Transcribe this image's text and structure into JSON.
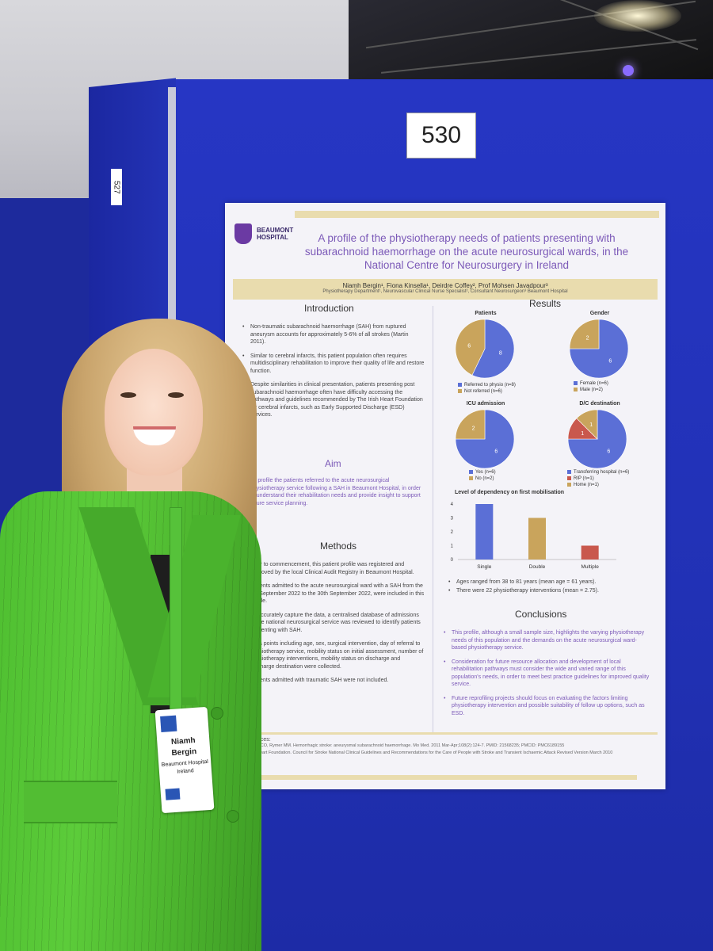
{
  "booth": {
    "number": "530",
    "side_number": "527"
  },
  "poster": {
    "logo": {
      "line1": "BEAUMONT",
      "line2": "HOSPITAL"
    },
    "title": "A profile of the physiotherapy needs of patients presenting with subarachnoid haemorrhage on the acute neurosurgical wards, in the National Centre for Neurosurgery in Ireland",
    "authors": "Niamh Bergin¹, Fiona Kinsella¹, Deirdre Coffey², Prof Mohsen Javadpour³",
    "affiliations": "Physiotherapy Department¹, Neurovascular Clinical Nurse Specialist², Consultant Neurosurgeon³ Beaumont Hospital",
    "introduction": {
      "heading": "Introduction",
      "bullets": [
        "Non-traumatic subarachnoid haemorrhage (SAH) from ruptured aneurysm accounts for approximately 5-6% of all strokes (Martin 2011).",
        "Similar to cerebral infarcts, this patient population often requires multidisciplinary rehabilitation to improve their quality of life and restore function.",
        "Despite similarities in clinical presentation, patients presenting post subarachnoid haemorrhage often have difficulty accessing the pathways and guidelines recommended by The Irish Heart Foundation for cerebral infarcts, such as Early Supported Discharge (ESD) services."
      ]
    },
    "aim": {
      "heading": "Aim",
      "text": "To profile the patients referred to the acute neurosurgical physiotherapy service following a SAH in Beaumont Hospital, in order to understand their rehabilitation needs and provide insight to support future service planning."
    },
    "methods": {
      "heading": "Methods",
      "bullets": [
        "Prior to commencement, this patient profile was registered and approved by the local Clinical Audit Registry in Beaumont Hospital.",
        "Patients admitted to the acute neurosurgical ward with a SAH from the 1st September 2022 to the 30th September 2022, were included in this profile.",
        "To accurately capture the data, a centralised database of admissions to the national neurosurgical service was reviewed to identify patients presenting with SAH.",
        "Data points including age, sex, surgical intervention, day of referral to physiotherapy service, mobility status on initial assessment, number of physiotherapy interventions, mobility status on discharge and discharge destination were collected.",
        "Patients admitted with traumatic SAH were not included."
      ]
    },
    "results": {
      "heading": "Results",
      "notes": [
        "Ages ranged from 38 to 81 years (mean age = 61 years).",
        "There were 22 physiotherapy interventions (mean = 2.75)."
      ]
    },
    "conclusions": {
      "heading": "Conclusions",
      "bullets": [
        "This profile, although a small sample size, highlights the varying physiotherapy needs of this population and the demands on the acute neurosurgical ward-based physiotherapy service.",
        "Consideration for future resource allocation and development of local rehabilitation pathways must consider the wide and varied range of this population's needs, in order to meet best practice guidelines for improved quality service.",
        "Future reprofiling projects should focus on evaluating the factors limiting physiotherapy intervention and possible suitability of follow up options, such as ESD."
      ]
    },
    "references": {
      "heading": "References:",
      "items": [
        "Martin CO, Rymer MM. Hemorrhagic stroke: aneurysmal subarachnoid haemorrhage. Mo Med. 2011 Mar-Apr;108(2):124-7. PMID: 21568235; PMCID: PMC6189155",
        "Irish Heart Foundation. Council for Stroke National Clinical Guidelines and Recommendations for the Care of People with Stroke and Transient Ischaemic Attack Revised Version March 2010"
      ]
    },
    "colors": {
      "blue": "#5b6fd6",
      "tan": "#c9a45c",
      "red": "#c9584d",
      "purple": "#7c5ab8",
      "gold": "#e9dcae"
    }
  },
  "chart_data": [
    {
      "type": "pie",
      "title": "Patients",
      "categories": [
        "Referred to physio (n=8)",
        "Not referred (n=6)"
      ],
      "values": [
        8,
        6
      ]
    },
    {
      "type": "pie",
      "title": "Gender",
      "categories": [
        "Female (n=6)",
        "Male (n=2)"
      ],
      "values": [
        6,
        2
      ]
    },
    {
      "type": "pie",
      "title": "ICU admission",
      "categories": [
        "Yes (n=6)",
        "No (n=2)"
      ],
      "values": [
        6,
        2
      ]
    },
    {
      "type": "pie",
      "title": "D/C destination",
      "categories": [
        "Transferring hospital (n=6)",
        "RIP (n=1)",
        "Home (n=1)"
      ],
      "values": [
        6,
        1,
        1
      ]
    },
    {
      "type": "bar",
      "title": "Level of dependency on first mobilisation",
      "categories": [
        "Single",
        "Double",
        "Multiple"
      ],
      "values": [
        4,
        3,
        1
      ],
      "ylim": [
        0,
        4
      ],
      "yticks": [
        "0",
        "1",
        "2",
        "3",
        "4"
      ]
    }
  ],
  "badge": {
    "name_first": "Niamh",
    "name_last": "Bergin",
    "org": "Beaumont Hospital",
    "country": "Ireland"
  }
}
